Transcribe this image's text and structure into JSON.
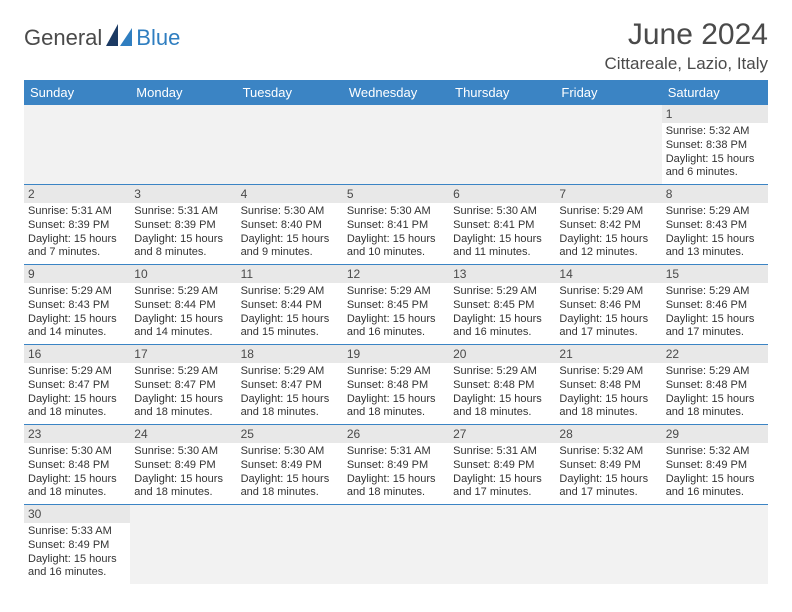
{
  "brand": {
    "part1": "General",
    "part2": "Blue"
  },
  "title": "June 2024",
  "location": "Cittareale, Lazio, Italy",
  "weekday_header_bg": "#3b84c4",
  "weekday_header_fg": "#ffffff",
  "daynum_bg": "#e8e8e8",
  "row_border_color": "#3b84c4",
  "weekdays": [
    "Sunday",
    "Monday",
    "Tuesday",
    "Wednesday",
    "Thursday",
    "Friday",
    "Saturday"
  ],
  "weeks": [
    [
      {
        "day": "",
        "sunrise": "",
        "sunset": "",
        "daylight": ""
      },
      {
        "day": "",
        "sunrise": "",
        "sunset": "",
        "daylight": ""
      },
      {
        "day": "",
        "sunrise": "",
        "sunset": "",
        "daylight": ""
      },
      {
        "day": "",
        "sunrise": "",
        "sunset": "",
        "daylight": ""
      },
      {
        "day": "",
        "sunrise": "",
        "sunset": "",
        "daylight": ""
      },
      {
        "day": "",
        "sunrise": "",
        "sunset": "",
        "daylight": ""
      },
      {
        "day": "1",
        "sunrise": "Sunrise: 5:32 AM",
        "sunset": "Sunset: 8:38 PM",
        "daylight": "Daylight: 15 hours and 6 minutes."
      }
    ],
    [
      {
        "day": "2",
        "sunrise": "Sunrise: 5:31 AM",
        "sunset": "Sunset: 8:39 PM",
        "daylight": "Daylight: 15 hours and 7 minutes."
      },
      {
        "day": "3",
        "sunrise": "Sunrise: 5:31 AM",
        "sunset": "Sunset: 8:39 PM",
        "daylight": "Daylight: 15 hours and 8 minutes."
      },
      {
        "day": "4",
        "sunrise": "Sunrise: 5:30 AM",
        "sunset": "Sunset: 8:40 PM",
        "daylight": "Daylight: 15 hours and 9 minutes."
      },
      {
        "day": "5",
        "sunrise": "Sunrise: 5:30 AM",
        "sunset": "Sunset: 8:41 PM",
        "daylight": "Daylight: 15 hours and 10 minutes."
      },
      {
        "day": "6",
        "sunrise": "Sunrise: 5:30 AM",
        "sunset": "Sunset: 8:41 PM",
        "daylight": "Daylight: 15 hours and 11 minutes."
      },
      {
        "day": "7",
        "sunrise": "Sunrise: 5:29 AM",
        "sunset": "Sunset: 8:42 PM",
        "daylight": "Daylight: 15 hours and 12 minutes."
      },
      {
        "day": "8",
        "sunrise": "Sunrise: 5:29 AM",
        "sunset": "Sunset: 8:43 PM",
        "daylight": "Daylight: 15 hours and 13 minutes."
      }
    ],
    [
      {
        "day": "9",
        "sunrise": "Sunrise: 5:29 AM",
        "sunset": "Sunset: 8:43 PM",
        "daylight": "Daylight: 15 hours and 14 minutes."
      },
      {
        "day": "10",
        "sunrise": "Sunrise: 5:29 AM",
        "sunset": "Sunset: 8:44 PM",
        "daylight": "Daylight: 15 hours and 14 minutes."
      },
      {
        "day": "11",
        "sunrise": "Sunrise: 5:29 AM",
        "sunset": "Sunset: 8:44 PM",
        "daylight": "Daylight: 15 hours and 15 minutes."
      },
      {
        "day": "12",
        "sunrise": "Sunrise: 5:29 AM",
        "sunset": "Sunset: 8:45 PM",
        "daylight": "Daylight: 15 hours and 16 minutes."
      },
      {
        "day": "13",
        "sunrise": "Sunrise: 5:29 AM",
        "sunset": "Sunset: 8:45 PM",
        "daylight": "Daylight: 15 hours and 16 minutes."
      },
      {
        "day": "14",
        "sunrise": "Sunrise: 5:29 AM",
        "sunset": "Sunset: 8:46 PM",
        "daylight": "Daylight: 15 hours and 17 minutes."
      },
      {
        "day": "15",
        "sunrise": "Sunrise: 5:29 AM",
        "sunset": "Sunset: 8:46 PM",
        "daylight": "Daylight: 15 hours and 17 minutes."
      }
    ],
    [
      {
        "day": "16",
        "sunrise": "Sunrise: 5:29 AM",
        "sunset": "Sunset: 8:47 PM",
        "daylight": "Daylight: 15 hours and 18 minutes."
      },
      {
        "day": "17",
        "sunrise": "Sunrise: 5:29 AM",
        "sunset": "Sunset: 8:47 PM",
        "daylight": "Daylight: 15 hours and 18 minutes."
      },
      {
        "day": "18",
        "sunrise": "Sunrise: 5:29 AM",
        "sunset": "Sunset: 8:47 PM",
        "daylight": "Daylight: 15 hours and 18 minutes."
      },
      {
        "day": "19",
        "sunrise": "Sunrise: 5:29 AM",
        "sunset": "Sunset: 8:48 PM",
        "daylight": "Daylight: 15 hours and 18 minutes."
      },
      {
        "day": "20",
        "sunrise": "Sunrise: 5:29 AM",
        "sunset": "Sunset: 8:48 PM",
        "daylight": "Daylight: 15 hours and 18 minutes."
      },
      {
        "day": "21",
        "sunrise": "Sunrise: 5:29 AM",
        "sunset": "Sunset: 8:48 PM",
        "daylight": "Daylight: 15 hours and 18 minutes."
      },
      {
        "day": "22",
        "sunrise": "Sunrise: 5:29 AM",
        "sunset": "Sunset: 8:48 PM",
        "daylight": "Daylight: 15 hours and 18 minutes."
      }
    ],
    [
      {
        "day": "23",
        "sunrise": "Sunrise: 5:30 AM",
        "sunset": "Sunset: 8:48 PM",
        "daylight": "Daylight: 15 hours and 18 minutes."
      },
      {
        "day": "24",
        "sunrise": "Sunrise: 5:30 AM",
        "sunset": "Sunset: 8:49 PM",
        "daylight": "Daylight: 15 hours and 18 minutes."
      },
      {
        "day": "25",
        "sunrise": "Sunrise: 5:30 AM",
        "sunset": "Sunset: 8:49 PM",
        "daylight": "Daylight: 15 hours and 18 minutes."
      },
      {
        "day": "26",
        "sunrise": "Sunrise: 5:31 AM",
        "sunset": "Sunset: 8:49 PM",
        "daylight": "Daylight: 15 hours and 18 minutes."
      },
      {
        "day": "27",
        "sunrise": "Sunrise: 5:31 AM",
        "sunset": "Sunset: 8:49 PM",
        "daylight": "Daylight: 15 hours and 17 minutes."
      },
      {
        "day": "28",
        "sunrise": "Sunrise: 5:32 AM",
        "sunset": "Sunset: 8:49 PM",
        "daylight": "Daylight: 15 hours and 17 minutes."
      },
      {
        "day": "29",
        "sunrise": "Sunrise: 5:32 AM",
        "sunset": "Sunset: 8:49 PM",
        "daylight": "Daylight: 15 hours and 16 minutes."
      }
    ],
    [
      {
        "day": "30",
        "sunrise": "Sunrise: 5:33 AM",
        "sunset": "Sunset: 8:49 PM",
        "daylight": "Daylight: 15 hours and 16 minutes."
      },
      {
        "day": "",
        "sunrise": "",
        "sunset": "",
        "daylight": ""
      },
      {
        "day": "",
        "sunrise": "",
        "sunset": "",
        "daylight": ""
      },
      {
        "day": "",
        "sunrise": "",
        "sunset": "",
        "daylight": ""
      },
      {
        "day": "",
        "sunrise": "",
        "sunset": "",
        "daylight": ""
      },
      {
        "day": "",
        "sunrise": "",
        "sunset": "",
        "daylight": ""
      },
      {
        "day": "",
        "sunrise": "",
        "sunset": "",
        "daylight": ""
      }
    ]
  ]
}
